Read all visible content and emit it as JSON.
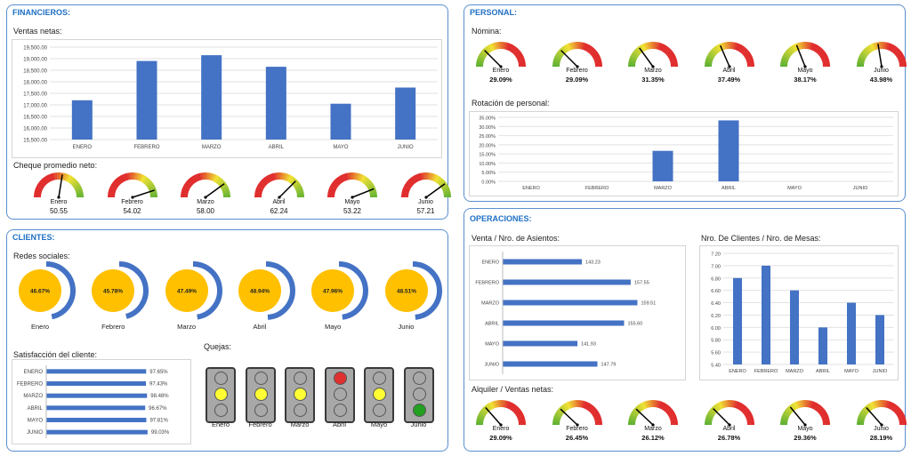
{
  "sections": {
    "financieros": "FINANCIEROS:",
    "personal": "PERSONAL:",
    "clientes": "CLIENTES:",
    "operaciones": "OPERACIONES:"
  },
  "titles": {
    "ventas": "Ventas netas:",
    "cheque": "Cheque promedio neto:",
    "nomina": "Nómina:",
    "rotacion": "Rotación de personal:",
    "redes": "Redes sociales:",
    "satisfaccion": "Satisfacción del cliente:",
    "quejas": "Quejas:",
    "asientos": "Venta / Nro.  de Asientos:",
    "clientes_mesas": "Nro. De Clientes / Nro. de Mesas:",
    "alquiler": "Alquiler / Ventas netas:"
  },
  "colors": {
    "bar": "#4472c4",
    "gold": "#ffc000",
    "section": "#1f6fc4",
    "red": "#e03030",
    "yellow": "#ffff33",
    "green": "#22a020"
  },
  "chart_data": [
    {
      "id": "ventas_netas",
      "type": "bar",
      "categories": [
        "ENERO",
        "FEBRERO",
        "MARZO",
        "ABRIL",
        "MAYO",
        "JUNIO"
      ],
      "values": [
        17200,
        18900,
        19150,
        18650,
        17050,
        17750
      ],
      "ylim": [
        15500,
        19500
      ],
      "yticks": [
        "15,500.00",
        "16,000.00",
        "16,500.00",
        "17,000.00",
        "17,500.00",
        "18,000.00",
        "18,500.00",
        "19,000.00",
        "19,500.00"
      ],
      "grid": true
    },
    {
      "id": "rotacion_personal",
      "type": "bar",
      "categories": [
        "ENERO",
        "FEBRERO",
        "MARZO",
        "ABRIL",
        "MAYO",
        "JUNIO"
      ],
      "values": [
        0,
        0,
        16.67,
        33.33,
        0,
        0
      ],
      "ylim": [
        0,
        35
      ],
      "yticks": [
        "0.00%",
        "5.00%",
        "10.00%",
        "15.00%",
        "20.00%",
        "25.00%",
        "30.00%",
        "35.00%"
      ],
      "grid": true
    },
    {
      "id": "satisfaccion_cliente",
      "type": "bar",
      "orientation": "horizontal",
      "categories": [
        "ENERO",
        "FEBRERO",
        "MARZO",
        "ABRIL",
        "MAYO",
        "JUNIO"
      ],
      "values": [
        97.65,
        97.43,
        98.48,
        96.67,
        97.81,
        99.03
      ],
      "labels": [
        "97.65%",
        "97.43%",
        "98.48%",
        "96.67%",
        "97.81%",
        "99.03%"
      ],
      "xlim": [
        0,
        100
      ]
    },
    {
      "id": "venta_asientos",
      "type": "bar",
      "orientation": "horizontal",
      "categories": [
        "ENERO",
        "FEBRERO",
        "MARZO",
        "ABRIL",
        "MAYO",
        "JUNIO"
      ],
      "values": [
        143.23,
        157.55,
        159.51,
        155.6,
        141.93,
        147.79
      ],
      "labels": [
        "143.23",
        "157.55",
        "159.51",
        "155.60",
        "141.93",
        "147.79"
      ],
      "xlim": [
        120,
        162
      ]
    },
    {
      "id": "clientes_mesas",
      "type": "bar",
      "categories": [
        "ENERO",
        "FEBRERO",
        "MARZO",
        "ABRIL",
        "MAYO",
        "JUNIO"
      ],
      "values": [
        6.8,
        7.0,
        6.6,
        6.0,
        6.4,
        6.2
      ],
      "ylim": [
        5.4,
        7.2
      ],
      "yticks": [
        "5.40",
        "5.60",
        "5.80",
        "6.00",
        "6.20",
        "6.40",
        "6.60",
        "6.80",
        "7.00",
        "7.20"
      ],
      "grid": true
    }
  ],
  "cheque": [
    {
      "month": "Enero",
      "value": "50.55",
      "pct": 0.55
    },
    {
      "month": "Febrero",
      "value": "54.02",
      "pct": 0.9
    },
    {
      "month": "Marzo",
      "value": "58.00",
      "pct": 0.8
    },
    {
      "month": "Abril",
      "value": "62.24",
      "pct": 0.75
    },
    {
      "month": "Mayo",
      "value": "53.22",
      "pct": 0.88
    },
    {
      "month": "Junio",
      "value": "57.21",
      "pct": 0.8
    }
  ],
  "nomina": [
    {
      "month": "Enero",
      "value": "29.09%",
      "pct": 0.25
    },
    {
      "month": "Febrero",
      "value": "29.09%",
      "pct": 0.25
    },
    {
      "month": "Marzo",
      "value": "31.35%",
      "pct": 0.3
    },
    {
      "month": "Abril",
      "value": "37.49%",
      "pct": 0.37
    },
    {
      "month": "Mayo",
      "value": "38.17%",
      "pct": 0.38
    },
    {
      "month": "Junio",
      "value": "43.98%",
      "pct": 0.45
    }
  ],
  "alquiler": [
    {
      "month": "Enero",
      "value": "29.09%",
      "pct": 0.27
    },
    {
      "month": "Febrero",
      "value": "26.45%",
      "pct": 0.24
    },
    {
      "month": "Marzo",
      "value": "26.12%",
      "pct": 0.24
    },
    {
      "month": "Abril",
      "value": "26.78%",
      "pct": 0.25
    },
    {
      "month": "Mayo",
      "value": "29.36%",
      "pct": 0.28
    },
    {
      "month": "Junio",
      "value": "28.19%",
      "pct": 0.27
    }
  ],
  "redes": [
    {
      "month": "Enero",
      "value": "46.67%",
      "pct": 0.4667
    },
    {
      "month": "Febrero",
      "value": "45.78%",
      "pct": 0.4578
    },
    {
      "month": "Marzo",
      "value": "47.49%",
      "pct": 0.4749
    },
    {
      "month": "Abril",
      "value": "48.94%",
      "pct": 0.4894
    },
    {
      "month": "Mayo",
      "value": "47.96%",
      "pct": 0.4796
    },
    {
      "month": "Junio",
      "value": "48.51%",
      "pct": 0.4851
    }
  ],
  "quejas": [
    {
      "month": "Enero",
      "light": "yellow"
    },
    {
      "month": "Febrero",
      "light": "yellow"
    },
    {
      "month": "Marzo",
      "light": "yellow"
    },
    {
      "month": "Abril",
      "light": "red"
    },
    {
      "month": "Mayo",
      "light": "yellow"
    },
    {
      "month": "Junio",
      "light": "green"
    }
  ]
}
